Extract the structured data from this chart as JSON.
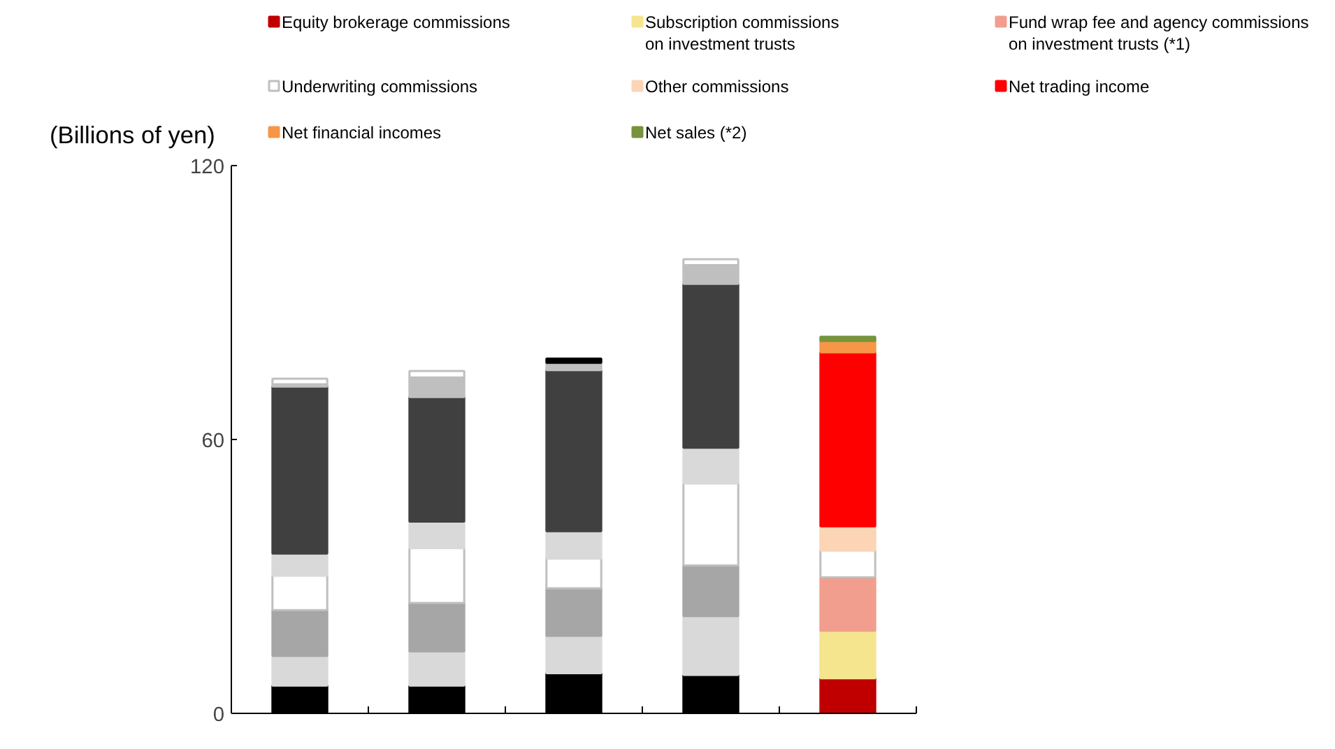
{
  "chart_data": {
    "type": "bar",
    "stacked": true,
    "ylabel": "(Billions of yen)",
    "categories": [
      null,
      null,
      null,
      null,
      null
    ],
    "ylim": [
      0,
      120
    ],
    "yticks": [
      0,
      60,
      120
    ],
    "grid": false,
    "legend": "top",
    "series": [
      {
        "name": "Equity brokerage commissions",
        "colors": [
          "#000000",
          "#000000",
          "#000000",
          "#000000",
          "#c00000"
        ],
        "values": [
          6.1,
          6.1,
          8.8,
          8.4,
          7.7
        ]
      },
      {
        "name": "Subscription commissions\non investment trusts",
        "colors": [
          "#d9d9d9",
          "#d9d9d9",
          "#d9d9d9",
          "#d9d9d9",
          "#f5e58f"
        ],
        "values": [
          6.5,
          7.5,
          8.2,
          12.9,
          10.4
        ]
      },
      {
        "name": "Fund wrap fee and agency commissions\non investment trusts (*1)",
        "colors": [
          "#a6a6a6",
          "#a6a6a6",
          "#a6a6a6",
          "#a6a6a6",
          "#f29e8e"
        ],
        "values": [
          10.0,
          10.6,
          10.4,
          11.1,
          11.7
        ]
      },
      {
        "name": "Underwriting commissions",
        "colors": [
          "#ffffff",
          "#ffffff",
          "#ffffff",
          "#ffffff",
          "#ffffff"
        ],
        "values": [
          7.6,
          12.0,
          6.5,
          18.0,
          5.9
        ]
      },
      {
        "name": "Other commissions",
        "colors": [
          "#d9d9d9",
          "#d9d9d9",
          "#d9d9d9",
          "#d9d9d9",
          "#fbd5b5"
        ],
        "values": [
          4.8,
          5.8,
          6.0,
          7.8,
          5.3
        ]
      },
      {
        "name": "Net trading income",
        "colors": [
          "#404040",
          "#404040",
          "#404040",
          "#404040",
          "#ff0000"
        ],
        "values": [
          36.6,
          27.3,
          35.3,
          35.9,
          38.1
        ]
      },
      {
        "name": "Net financial incomes",
        "colors": [
          "#bfbfbf",
          "#bfbfbf",
          "#bfbfbf",
          "#bfbfbf",
          "#f79646"
        ],
        "values": [
          0.5,
          4.3,
          1.6,
          4.1,
          2.5
        ]
      },
      {
        "name": "Net sales (*2)",
        "colors": [
          "#ffffff",
          "#ffffff",
          "#000000",
          "#ffffff",
          "#77933c"
        ],
        "values": [
          1.2,
          1.4,
          0.9,
          1.3,
          0.9
        ]
      }
    ]
  }
}
